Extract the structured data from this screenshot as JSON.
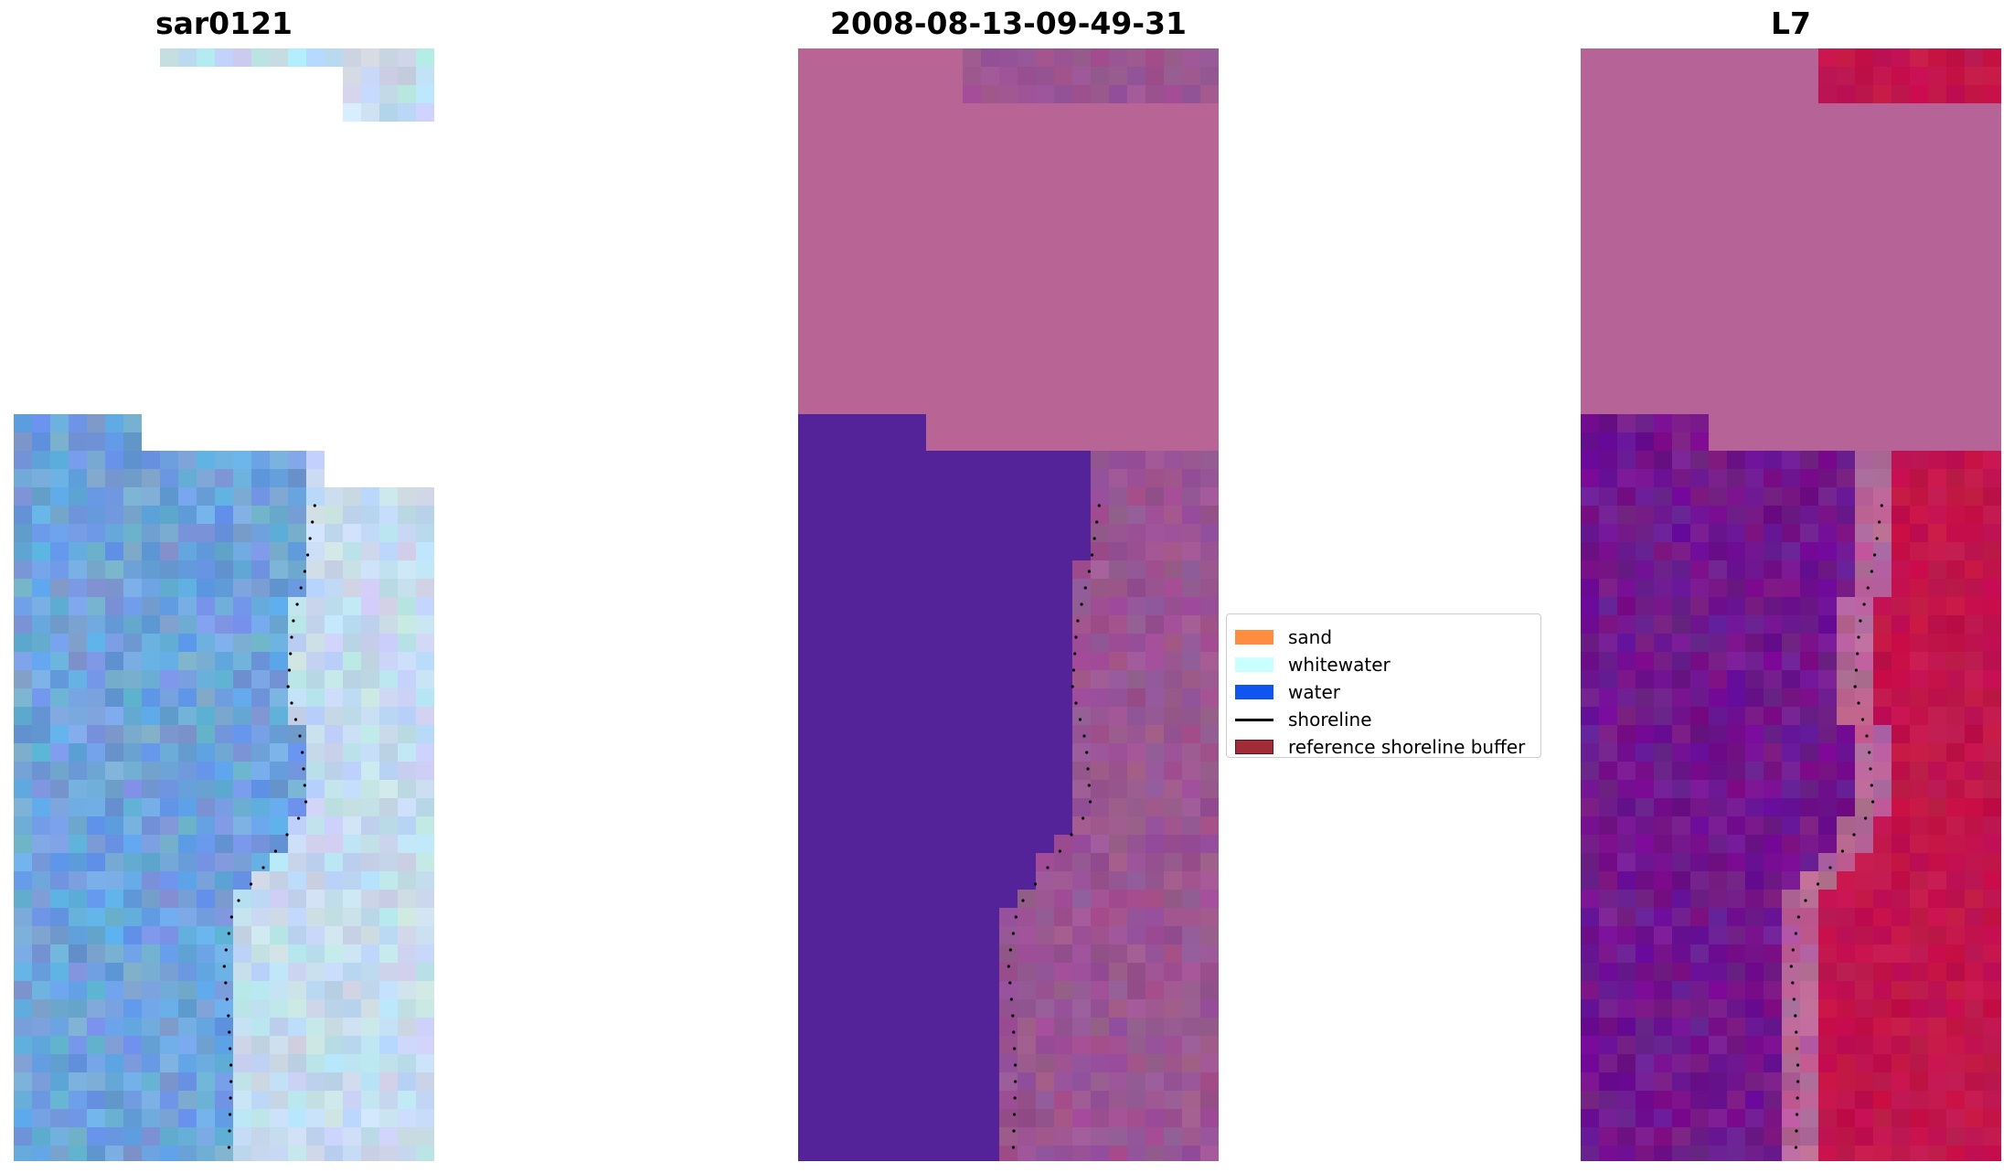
{
  "panels": [
    {
      "title": "sar0121",
      "kind": "sar"
    },
    {
      "title": "2008-08-13-09-49-31",
      "kind": "classified"
    },
    {
      "title": "L7",
      "kind": "index"
    }
  ],
  "legend": {
    "items": [
      {
        "label": "sand",
        "type": "patch",
        "color": "#ff8c3f"
      },
      {
        "label": "whitewater",
        "type": "patch",
        "color": "#c9ffff"
      },
      {
        "label": "water",
        "type": "patch",
        "color": "#1155f0"
      },
      {
        "label": "shoreline",
        "type": "line",
        "color": "#000000"
      },
      {
        "label": "reference shoreline buffer",
        "type": "patch",
        "color": "#a12c38",
        "edge": "#5a1a1f"
      }
    ]
  },
  "colors": {
    "sar_land": "#6fa3dc",
    "sar_sea": "#c5dcef",
    "class_water": "#54239a",
    "class_buffer": "#b86596",
    "class_sea": "#9b5592",
    "index_water": "#72178e",
    "index_land": "#b66498",
    "index_sea": "#c2144c"
  }
}
